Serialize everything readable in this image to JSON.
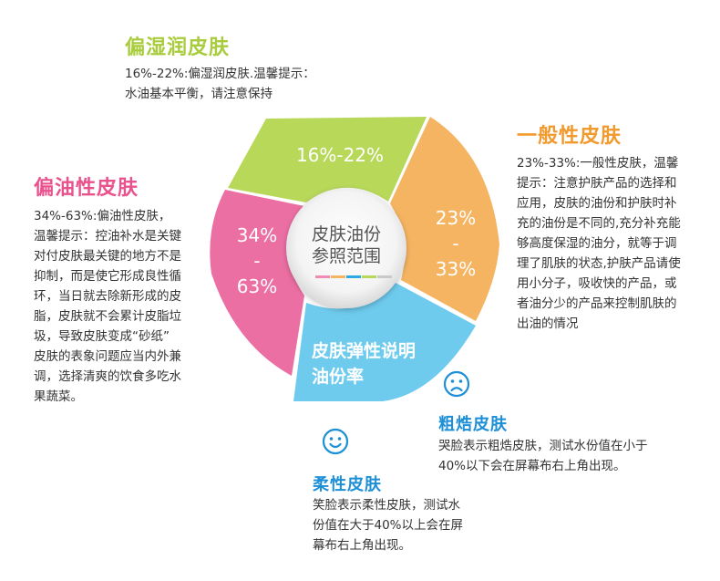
{
  "diagram": {
    "center_title_line1": "皮肤油份",
    "center_title_line2": "参照范围",
    "segments": [
      {
        "label": "16%-22%",
        "color": "#b8d85a"
      },
      {
        "label_top": "23%",
        "label_mid": "-",
        "label_bottom": "33%",
        "color": "#f5b462"
      },
      {
        "label_line1": "皮肤弹性说明",
        "label_line2": "油份率",
        "color": "#6ecbee"
      },
      {
        "label_top": "34%",
        "label_mid": "-",
        "label_bottom": "63%",
        "color": "#ec6fa3"
      }
    ],
    "center_stripe_colors": [
      "#f08bb4",
      "#f5b462",
      "#2ba9e0",
      "#b8d85a",
      "#c9c9c9"
    ]
  },
  "sections": {
    "moist": {
      "title": "偏湿润皮肤",
      "title_color": "#a8cc3c",
      "text": "16%-22%:偏湿润皮肤.温馨提示：\n水油基本平衡，请注意保持"
    },
    "normal": {
      "title": "一般性皮肤",
      "title_color": "#f29a2e",
      "text": "23%-33%:一般性皮肤，温馨\n提示：注意护肤产品的选择和\n应用，皮肤的油份和护肤时补\n充的油份是不同的,充分补充能\n够高度保湿的油分，就等于调\n理了肌肤的状态,护肤产品请使\n用小分子，吸收快的产品，或\n者油分少的产品来控制肌肤的\n出油的情况"
    },
    "oily": {
      "title": "偏油性皮肤",
      "title_color": "#e9528d",
      "text": "34%-63%:偏油性皮肤，\n温馨提示：控油补水是关键\n对付皮肤最关键的地方不是\n抑制，而是使它形成良性循\n环，当日就去除新形成的皮\n脂，皮肤就不会累计皮脂垃\n圾，导致皮肤变成“砂纸”\n皮肤的表象问题应当内外兼\n调，选择清爽的饮食多吃水\n果蔬菜。"
    },
    "rough": {
      "title": "粗焅皮肤",
      "title_color": "#1d8fd6",
      "icon": "sad-face-icon",
      "text": "哭脸表示粗焅皮肤，测试水份值在小于\n40%以下会在屏幕布右上角出现。"
    },
    "soft": {
      "title": "柔性皮肤",
      "title_color": "#1d8fd6",
      "icon": "smiley-face-icon",
      "text": "笑脸表示柔性皮肤，测试水\n份值在大于40%以上会在屏\n幕布右上角出现。"
    }
  }
}
